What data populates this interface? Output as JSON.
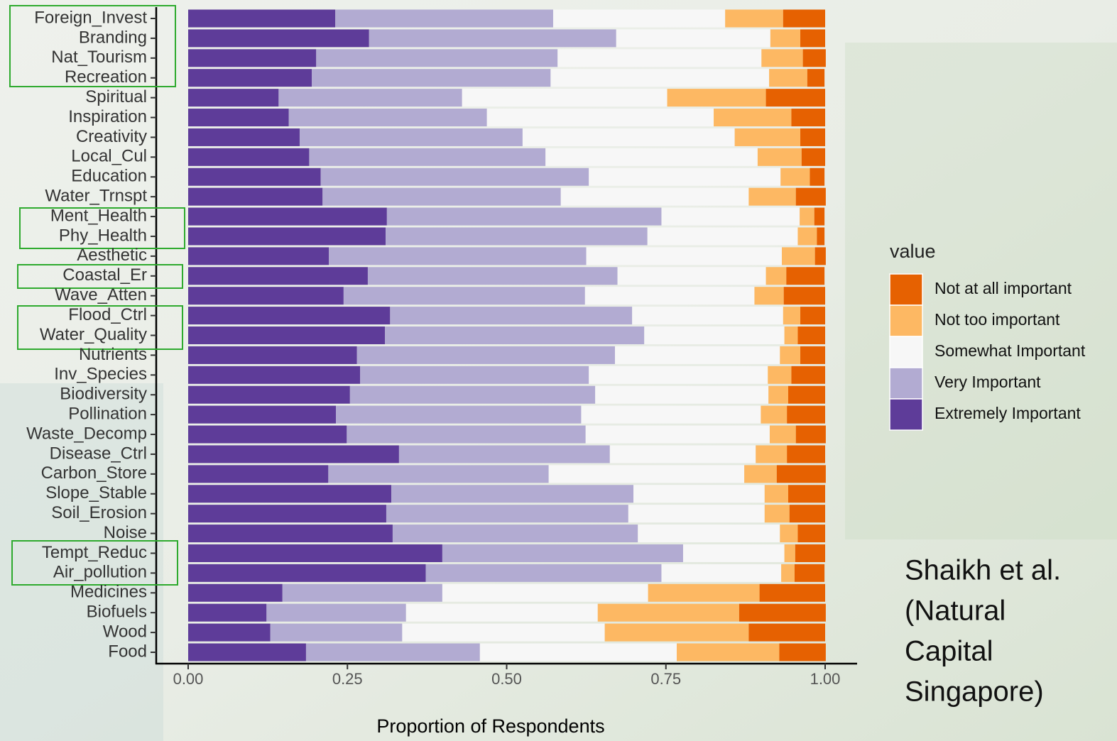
{
  "chart_data": {
    "type": "stacked_bar_horizontal",
    "x_label": "Proportion of Respondents",
    "legend_title": "value",
    "legend_position": "right",
    "annotation": [
      "Shaikh et al.",
      "(Natural",
      "Capital",
      "Singapore)"
    ],
    "xlim": [
      0,
      1
    ],
    "xticks": [
      {
        "value": 0,
        "label": "0.00"
      },
      {
        "value": 0.25,
        "label": "0.25"
      },
      {
        "value": 0.5,
        "label": "0.50"
      },
      {
        "value": 0.75,
        "label": "0.75"
      },
      {
        "value": 1,
        "label": "1.00"
      }
    ],
    "categories": [
      "Foreign_Invest",
      "Branding",
      "Nat_Tourism",
      "Recreation",
      "Spiritual",
      "Inspiration",
      "Creativity",
      "Local_Cul",
      "Education",
      "Water_Trnspt",
      "Ment_Health",
      "Phy_Health",
      "Aesthetic",
      "Coastal_Er",
      "Wave_Atten",
      "Flood_Ctrl",
      "Water_Quality",
      "Nutrients",
      "Inv_Species",
      "Biodiversity",
      "Pollination",
      "Waste_Decomp",
      "Disease_Ctrl",
      "Carbon_Store",
      "Slope_Stable",
      "Soil_Erosion",
      "Noise",
      "Tempt_Reduc",
      "Air_pollution",
      "Medicines",
      "Biofuels",
      "Wood",
      "Food"
    ],
    "series": [
      {
        "name": "Not at all important",
        "color": "#e66101",
        "values": [
          0.066,
          0.039,
          0.036,
          0.027,
          0.093,
          0.053,
          0.039,
          0.037,
          0.023,
          0.047,
          0.016,
          0.012,
          0.017,
          0.06,
          0.065,
          0.039,
          0.043,
          0.039,
          0.053,
          0.058,
          0.06,
          0.047,
          0.06,
          0.077,
          0.058,
          0.056,
          0.043,
          0.047,
          0.047,
          0.103,
          0.136,
          0.12,
          0.073
        ]
      },
      {
        "name": "Not too important",
        "color": "#fdb863",
        "values": [
          0.091,
          0.047,
          0.065,
          0.06,
          0.155,
          0.122,
          0.103,
          0.069,
          0.046,
          0.074,
          0.023,
          0.03,
          0.052,
          0.032,
          0.046,
          0.027,
          0.021,
          0.032,
          0.037,
          0.031,
          0.041,
          0.041,
          0.049,
          0.051,
          0.037,
          0.039,
          0.028,
          0.017,
          0.021,
          0.175,
          0.222,
          0.226,
          0.161
        ]
      },
      {
        "name": "Somewhat Important",
        "color": "#f7f7f7",
        "values": [
          0.27,
          0.242,
          0.32,
          0.343,
          0.322,
          0.356,
          0.333,
          0.333,
          0.301,
          0.295,
          0.217,
          0.236,
          0.307,
          0.233,
          0.266,
          0.237,
          0.22,
          0.259,
          0.281,
          0.272,
          0.282,
          0.289,
          0.229,
          0.307,
          0.206,
          0.214,
          0.223,
          0.159,
          0.188,
          0.323,
          0.301,
          0.318,
          0.309
        ]
      },
      {
        "name": "Very Important",
        "color": "#b2abd2",
        "values": [
          0.342,
          0.388,
          0.379,
          0.375,
          0.288,
          0.311,
          0.35,
          0.371,
          0.421,
          0.374,
          0.431,
          0.411,
          0.404,
          0.392,
          0.379,
          0.38,
          0.407,
          0.405,
          0.359,
          0.385,
          0.385,
          0.375,
          0.331,
          0.346,
          0.38,
          0.38,
          0.385,
          0.378,
          0.37,
          0.251,
          0.219,
          0.207,
          0.273
        ]
      },
      {
        "name": "Extremely Important",
        "color": "#5e3c99",
        "values": [
          0.231,
          0.284,
          0.201,
          0.194,
          0.142,
          0.158,
          0.175,
          0.19,
          0.208,
          0.211,
          0.312,
          0.31,
          0.221,
          0.282,
          0.244,
          0.317,
          0.309,
          0.265,
          0.27,
          0.254,
          0.232,
          0.249,
          0.331,
          0.22,
          0.319,
          0.311,
          0.321,
          0.399,
          0.373,
          0.148,
          0.123,
          0.129,
          0.185
        ]
      }
    ]
  }
}
